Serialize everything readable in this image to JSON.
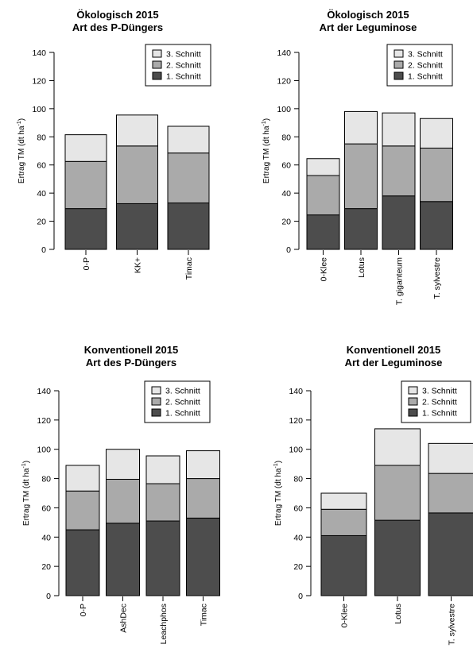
{
  "colors": {
    "schnitt1": "#4d4d4d",
    "schnitt2": "#aaaaaa",
    "schnitt3": "#e6e6e6",
    "axis": "#000000"
  },
  "chart_data": [
    {
      "type": "bar",
      "stacked": true,
      "title_line1": "Ökologisch 2015",
      "title_line2": "Art des P-Düngers",
      "ylabel": "Ertrag TM (dt ha",
      "ylabel_sup": "-1",
      "ylabel_close": ")",
      "ylim": [
        0,
        140
      ],
      "yticks": [
        "0",
        "20",
        "40",
        "60",
        "80",
        "100",
        "120",
        "140"
      ],
      "categories": [
        "0-P",
        "KK+",
        "Timac"
      ],
      "legend_position": "top-right",
      "series": [
        {
          "name": "1. Schnitt",
          "values": [
            29,
            32.5,
            33
          ]
        },
        {
          "name": "2. Schnitt",
          "values": [
            33.5,
            41,
            35.5
          ]
        },
        {
          "name": "3. Schnitt",
          "values": [
            19,
            22,
            19
          ]
        }
      ]
    },
    {
      "type": "bar",
      "stacked": true,
      "title_line1": "Ökologisch 2015",
      "title_line2": "Art der Leguminose",
      "ylabel": "Ertrag TM (dt ha",
      "ylabel_sup": "-1",
      "ylabel_close": ")",
      "ylim": [
        0,
        140
      ],
      "yticks": [
        "0",
        "20",
        "40",
        "60",
        "80",
        "100",
        "120",
        "140"
      ],
      "categories": [
        "0-Klee",
        "Lotus",
        "T. giganteum",
        "T. sylvestre"
      ],
      "legend_position": "top-right",
      "series": [
        {
          "name": "1. Schnitt",
          "values": [
            24.5,
            29,
            38,
            34
          ]
        },
        {
          "name": "2. Schnitt",
          "values": [
            28,
            46,
            35.5,
            38
          ]
        },
        {
          "name": "3. Schnitt",
          "values": [
            12,
            23,
            23.5,
            21
          ]
        }
      ]
    },
    {
      "type": "bar",
      "stacked": true,
      "title_line1": "Konventionell 2015",
      "title_line2": "Art des P-Düngers",
      "ylabel": "Ertrag TM (dt ha",
      "ylabel_sup": "-1",
      "ylabel_close": ")",
      "ylim": [
        0,
        140
      ],
      "yticks": [
        "0",
        "20",
        "40",
        "60",
        "80",
        "100",
        "120",
        "140"
      ],
      "categories": [
        "0-P",
        "AshDec",
        "Leachphos",
        "Timac"
      ],
      "legend_position": "top-right",
      "series": [
        {
          "name": "1. Schnitt",
          "values": [
            45,
            49.5,
            51,
            53
          ]
        },
        {
          "name": "2. Schnitt",
          "values": [
            26.5,
            30,
            25.5,
            27
          ]
        },
        {
          "name": "3. Schnitt",
          "values": [
            17.5,
            20.5,
            19,
            19
          ]
        }
      ]
    },
    {
      "type": "bar",
      "stacked": true,
      "title_line1": "Konventionell 2015",
      "title_line2": "Art der Leguminose",
      "ylabel": "Ertrag TM (dt ha",
      "ylabel_sup": "-1",
      "ylabel_close": ")",
      "ylim": [
        0,
        140
      ],
      "yticks": [
        "0",
        "20",
        "40",
        "60",
        "80",
        "100",
        "120",
        "140"
      ],
      "categories": [
        "0-Klee",
        "Lotus",
        "T. sylvestre"
      ],
      "legend_position": "top-right",
      "series": [
        {
          "name": "1. Schnitt",
          "values": [
            41,
            51.5,
            56.5
          ]
        },
        {
          "name": "2. Schnitt",
          "values": [
            18,
            37.5,
            27
          ]
        },
        {
          "name": "3. Schnitt",
          "values": [
            11,
            25,
            20.5
          ]
        }
      ]
    }
  ]
}
